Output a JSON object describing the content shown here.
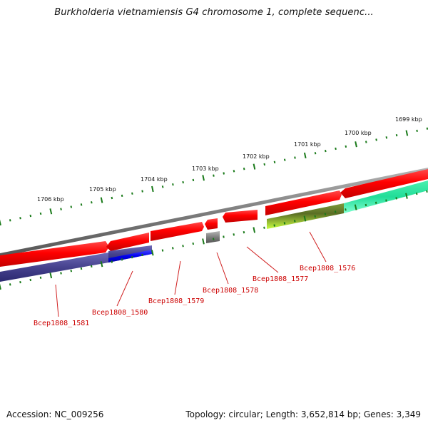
{
  "title": "Burkholderia vietnamiensis G4 chromosome 1, complete sequenc...",
  "footer": {
    "accession": "Accession: NC_009256",
    "summary": "Topology: circular; Length: 3,652,814 bp; Genes: 3,349"
  },
  "colors": {
    "backbone": "#8a8a8a",
    "tick": "#1a7a1a",
    "tick_label": "#111111",
    "gene_label": "#cc0000",
    "callout_line": "#d02020"
  },
  "ruler": [
    {
      "label": "1706 kbp"
    },
    {
      "label": "1705 kbp"
    },
    {
      "label": "1704 kbp"
    },
    {
      "label": "1703 kbp"
    },
    {
      "label": "1702 kbp"
    },
    {
      "label": "1701 kbp"
    },
    {
      "label": "1700 kbp"
    },
    {
      "label": "1699 kbp"
    }
  ],
  "gene_labels": [
    {
      "text": "Bcep1808_1581"
    },
    {
      "text": "Bcep1808_1580"
    },
    {
      "text": "Bcep1808_1579"
    },
    {
      "text": "Bcep1808_1578"
    },
    {
      "text": "Bcep1808_1577"
    },
    {
      "text": "Bcep1808_1576"
    }
  ]
}
